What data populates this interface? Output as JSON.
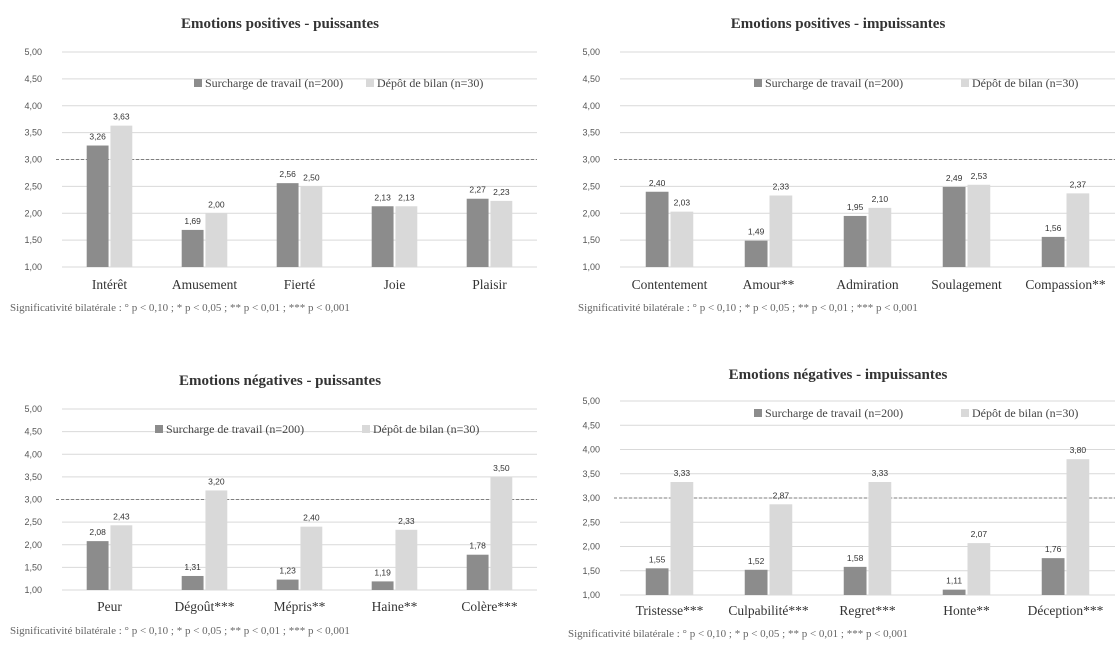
{
  "footnote": "Significativité bilatérale : ° p < 0,10 ; * p < 0,05 ; ** p < 0,01 ; *** p < 0,001",
  "colors": {
    "surcharge": "#8c8c8c",
    "depot": "#d9d9d9",
    "grid": "#d9d9d9",
    "threshold": "#7f7f7f"
  },
  "chart_data": [
    {
      "type": "bar",
      "title": "Emotions positives - puissantes",
      "categories": [
        "Intérêt",
        "Amusement",
        "Fierté",
        "Joie",
        "Plaisir"
      ],
      "series": [
        {
          "name": "Surcharge de travail (n=200)",
          "values": [
            3.26,
            1.69,
            2.56,
            2.13,
            2.27
          ],
          "labels": [
            "3,26",
            "1,69",
            "2,56",
            "2,13",
            "2,27"
          ]
        },
        {
          "name": "Dépôt de bilan (n=30)",
          "values": [
            3.63,
            2.0,
            2.5,
            2.13,
            2.23
          ],
          "labels": [
            "3,63",
            "2,00",
            "2,50",
            "2,13",
            "2,23"
          ]
        }
      ],
      "ylim": [
        1,
        5
      ],
      "yticks": [
        "1,00",
        "1,50",
        "2,00",
        "2,50",
        "3,00",
        "3,50",
        "4,00",
        "4,50",
        "5,00"
      ],
      "reference_line": 3.0,
      "grid": true,
      "legend": "top-right"
    },
    {
      "type": "bar",
      "title": "Emotions positives - impuissantes",
      "categories": [
        "Contentement",
        "Amour**",
        "Admiration",
        "Soulagement",
        "Compassion**"
      ],
      "series": [
        {
          "name": "Surcharge de travail (n=200)",
          "values": [
            2.4,
            1.49,
            1.95,
            2.49,
            1.56
          ],
          "labels": [
            "2,40",
            "1,49",
            "1,95",
            "2,49",
            "1,56"
          ]
        },
        {
          "name": "Dépôt de bilan (n=30)",
          "values": [
            2.03,
            2.33,
            2.1,
            2.53,
            2.37
          ],
          "labels": [
            "2,03",
            "2,33",
            "2,10",
            "2,53",
            "2,37"
          ]
        }
      ],
      "ylim": [
        1,
        5
      ],
      "yticks": [
        "1,00",
        "1,50",
        "2,00",
        "2,50",
        "3,00",
        "3,50",
        "4,00",
        "4,50",
        "5,00"
      ],
      "reference_line": 3.0,
      "grid": true,
      "legend": "top-right"
    },
    {
      "type": "bar",
      "title": "Emotions négatives - puissantes",
      "categories": [
        "Peur",
        "Dégoût***",
        "Mépris**",
        "Haine**",
        "Colère***"
      ],
      "series": [
        {
          "name": "Surcharge de travail (n=200)",
          "values": [
            2.08,
            1.31,
            1.23,
            1.19,
            1.78
          ],
          "labels": [
            "2,08",
            "1,31",
            "1,23",
            "1,19",
            "1,78"
          ]
        },
        {
          "name": "Dépôt de bilan (n=30)",
          "values": [
            2.43,
            3.2,
            2.4,
            2.33,
            3.5
          ],
          "labels": [
            "2,43",
            "3,20",
            "2,40",
            "2,33",
            "3,50"
          ]
        }
      ],
      "ylim": [
        1,
        5
      ],
      "yticks": [
        "1,00",
        "1,50",
        "2,00",
        "2,50",
        "3,00",
        "3,50",
        "4,00",
        "4,50",
        "5,00"
      ],
      "reference_line": 3.0,
      "grid": true,
      "legend": "top-right"
    },
    {
      "type": "bar",
      "title": "Emotions négatives - impuissantes",
      "categories": [
        "Tristesse***",
        "Culpabilité***",
        "Regret***",
        "Honte**",
        "Déception***"
      ],
      "series": [
        {
          "name": "Surcharge de travail (n=200)",
          "values": [
            1.55,
            1.52,
            1.58,
            1.11,
            1.76
          ],
          "labels": [
            "1,55",
            "1,52",
            "1,58",
            "1,11",
            "1,76"
          ]
        },
        {
          "name": "Dépôt de bilan (n=30)",
          "values": [
            3.33,
            2.87,
            3.33,
            2.07,
            3.8
          ],
          "labels": [
            "3,33",
            "2,87",
            "3,33",
            "2,07",
            "3,80"
          ]
        }
      ],
      "ylim": [
        1,
        5
      ],
      "yticks": [
        "1,00",
        "1,50",
        "2,00",
        "2,50",
        "3,00",
        "3,50",
        "4,00",
        "4,50",
        "5,00"
      ],
      "reference_line": 3.0,
      "grid": true,
      "legend": "top-right"
    }
  ]
}
